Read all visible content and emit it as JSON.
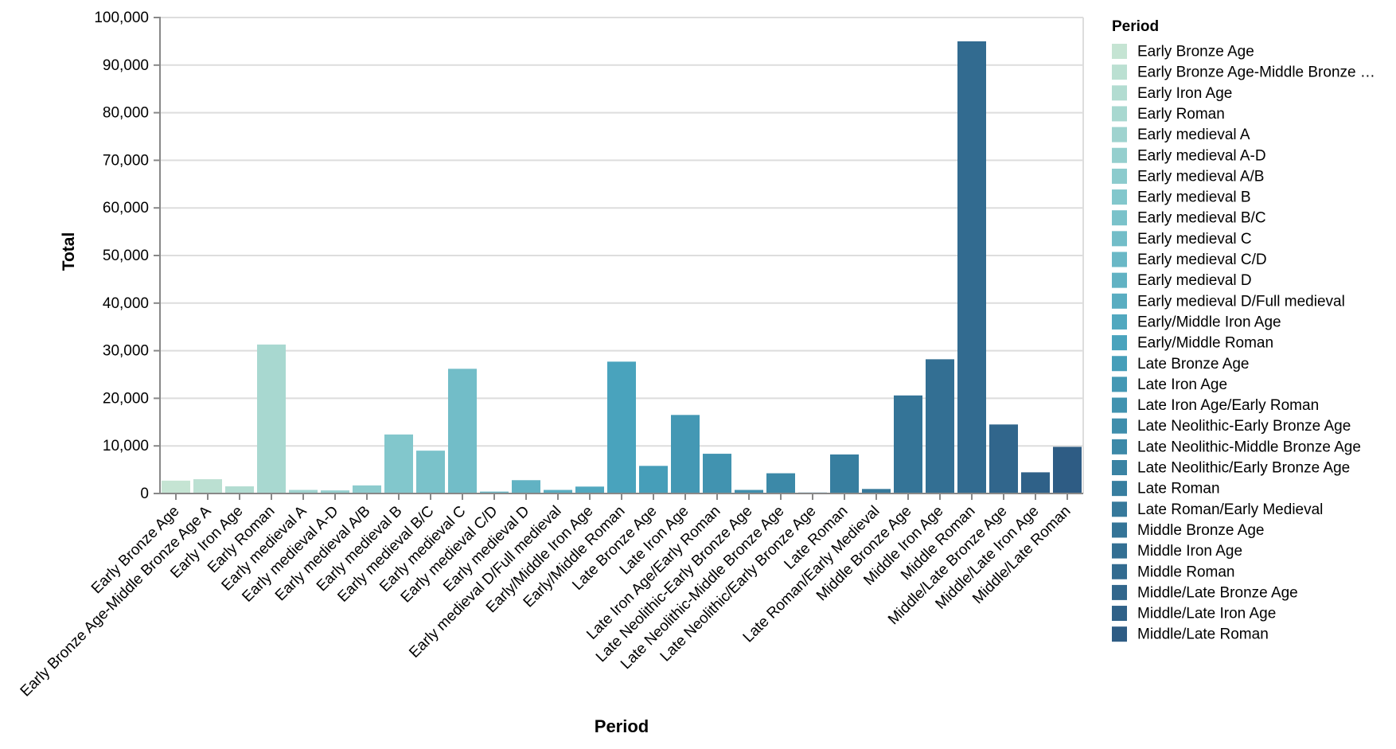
{
  "chart_data": {
    "type": "bar",
    "title": "",
    "xlabel": "Period",
    "ylabel": "Total",
    "ylim": [
      0,
      100000
    ],
    "y_tick_step": 10000,
    "y_tick_labels": [
      "0",
      "10,000",
      "20,000",
      "30,000",
      "40,000",
      "50,000",
      "60,000",
      "70,000",
      "80,000",
      "90,000",
      "100,000"
    ],
    "legend_title": "Period",
    "legend_position": "right",
    "grid": true,
    "categories": [
      "Early Bronze Age",
      "Early Bronze Age-Middle Bronze Age A",
      "Early Iron Age",
      "Early Roman",
      "Early medieval A",
      "Early medieval A-D",
      "Early medieval A/B",
      "Early medieval B",
      "Early medieval B/C",
      "Early medieval C",
      "Early medieval C/D",
      "Early medieval D",
      "Early medieval D/Full medieval",
      "Early/Middle Iron Age",
      "Early/Middle Roman",
      "Late Bronze Age",
      "Late Iron Age",
      "Late Iron Age/Early Roman",
      "Late Neolithic-Early Bronze Age",
      "Late Neolithic-Middle Bronze Age",
      "Late Neolithic/Early Bronze Age",
      "Late Roman",
      "Late Roman/Early Medieval",
      "Middle Bronze Age",
      "Middle Iron Age",
      "Middle Roman",
      "Middle/Late Bronze Age",
      "Middle/Late Iron Age",
      "Middle/Late Roman"
    ],
    "values": [
      2700,
      3000,
      1500,
      31300,
      750,
      650,
      1700,
      12400,
      9000,
      26200,
      400,
      2800,
      750,
      1450,
      27700,
      5800,
      16500,
      8350,
      750,
      4250,
      200,
      8200,
      950,
      20600,
      28200,
      95000,
      14500,
      4450,
      9800
    ],
    "legend_labels": [
      "Early Bronze Age",
      "Early Bronze Age-Middle Bronze …",
      "Early Iron Age",
      "Early Roman",
      "Early medieval A",
      "Early medieval A-D",
      "Early medieval A/B",
      "Early medieval B",
      "Early medieval B/C",
      "Early medieval C",
      "Early medieval C/D",
      "Early medieval D",
      "Early medieval D/Full medieval",
      "Early/Middle Iron Age",
      "Early/Middle Roman",
      "Late Bronze Age",
      "Late Iron Age",
      "Late Iron Age/Early Roman",
      "Late Neolithic-Early Bronze Age",
      "Late Neolithic-Middle Bronze Age",
      "Late Neolithic/Early Bronze Age",
      "Late Roman",
      "Late Roman/Early Medieval",
      "Middle Bronze Age",
      "Middle Iron Age",
      "Middle Roman",
      "Middle/Late Bronze Age",
      "Middle/Late Iron Age",
      "Middle/Late Roman"
    ],
    "palette": [
      "#c5e4d3",
      "#bbe0d2",
      "#b2dcd1",
      "#a8d8d0",
      "#9fd3cf",
      "#95cfce",
      "#8ccbcd",
      "#82c7cc",
      "#7ac2ca",
      "#72bdc8",
      "#6ab8c6",
      "#61b2c3",
      "#59adc1",
      "#51a8bf",
      "#49a3bd",
      "#469eb9",
      "#4498b4",
      "#4193b0",
      "#3f8eac",
      "#3c89a8",
      "#3a83a3",
      "#377e9f",
      "#36799b",
      "#347497",
      "#336f93",
      "#326b90",
      "#31668c",
      "#2f6188",
      "#2e5c84"
    ],
    "colors": {
      "grid": "#dddddd",
      "axis_domain": "#888888",
      "tick": "#888888",
      "text": "#000000"
    }
  }
}
